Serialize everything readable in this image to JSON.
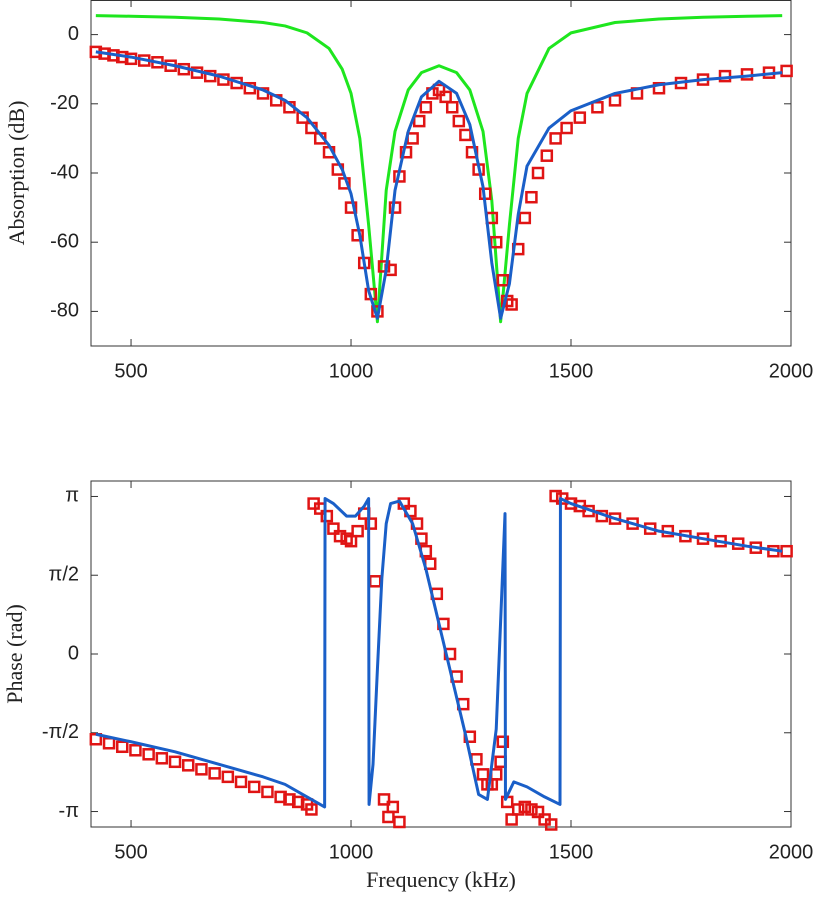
{
  "chart_data": [
    {
      "type": "line",
      "ylabel": "Absorption (dB)",
      "xlim": [
        409,
        2000
      ],
      "xticks": [
        500,
        1000,
        1500,
        2000
      ],
      "ylim": [
        -90,
        10
      ],
      "yticks": [
        -80,
        -60,
        -40,
        -20,
        0
      ],
      "grid": false,
      "series": [
        {
          "color": "#1ee61e",
          "mode": "lines",
          "x": [
            420,
            500,
            600,
            700,
            800,
            850,
            900,
            950,
            980,
            1000,
            1020,
            1040,
            1060,
            1080,
            1100,
            1130,
            1160,
            1200,
            1240,
            1270,
            1300,
            1320,
            1340,
            1360,
            1380,
            1400,
            1450,
            1500,
            1600,
            1700,
            1800,
            1900,
            1980
          ],
          "values": [
            5.5,
            5.3,
            5.0,
            4.5,
            3.5,
            2.5,
            0.5,
            -4,
            -10,
            -17,
            -30,
            -55,
            -83,
            -45,
            -28,
            -16,
            -11,
            -9,
            -11,
            -16,
            -28,
            -48,
            -83,
            -55,
            -30,
            -17,
            -4,
            0.5,
            3.5,
            4.5,
            5,
            5.3,
            5.5
          ]
        },
        {
          "color": "#e01414",
          "mode": "markers",
          "x": [
            420,
            440,
            460,
            480,
            500,
            530,
            560,
            590,
            620,
            650,
            680,
            710,
            740,
            770,
            800,
            830,
            860,
            890,
            910,
            930,
            950,
            970,
            985,
            1000,
            1015,
            1030,
            1045,
            1060,
            1075,
            1090,
            1100,
            1110,
            1125,
            1140,
            1155,
            1170,
            1185,
            1200,
            1215,
            1230,
            1245,
            1260,
            1275,
            1290,
            1305,
            1320,
            1330,
            1345,
            1355,
            1365,
            1380,
            1395,
            1410,
            1425,
            1445,
            1465,
            1490,
            1520,
            1560,
            1600,
            1650,
            1700,
            1750,
            1800,
            1850,
            1900,
            1950,
            1990
          ],
          "values": [
            -5,
            -5.5,
            -6,
            -6.5,
            -7,
            -7.5,
            -8,
            -9,
            -10,
            -11,
            -12,
            -13,
            -14,
            -15.5,
            -17,
            -19,
            -21,
            -24,
            -27,
            -30,
            -34,
            -39,
            -43,
            -50,
            -58,
            -66,
            -75,
            -80,
            -67,
            -68,
            -50,
            -41,
            -34,
            -30,
            -25,
            -21,
            -17,
            -16,
            -18,
            -21,
            -25,
            -29,
            -34,
            -39,
            -46,
            -53,
            -60,
            -71,
            -77,
            -78,
            -62,
            -53,
            -47,
            -40,
            -35,
            -30,
            -27,
            -24,
            -21,
            -19,
            -17,
            -15.5,
            -14,
            -13,
            -12,
            -11.5,
            -11,
            -10.5
          ]
        },
        {
          "color": "#1a5fc8",
          "mode": "lines",
          "x": [
            420,
            500,
            600,
            700,
            800,
            850,
            900,
            950,
            980,
            1000,
            1020,
            1040,
            1060,
            1080,
            1100,
            1130,
            1160,
            1200,
            1240,
            1270,
            1300,
            1320,
            1340,
            1360,
            1380,
            1400,
            1450,
            1500,
            1600,
            1700,
            1800,
            1900,
            1980
          ],
          "values": [
            -5,
            -6.5,
            -9,
            -12,
            -16,
            -19,
            -24,
            -32,
            -39,
            -46,
            -58,
            -74,
            -82,
            -68,
            -45,
            -28,
            -18,
            -13.5,
            -17,
            -26,
            -44,
            -66,
            -82,
            -72,
            -52,
            -38,
            -27,
            -22,
            -17,
            -14.5,
            -13,
            -12,
            -11
          ]
        }
      ]
    },
    {
      "type": "line",
      "xlabel": "Frequency (kHz)",
      "ylabel": "Phase (rad)",
      "xlim": [
        409,
        2000
      ],
      "xticks": [
        500,
        1000,
        1500,
        2000
      ],
      "ylim": [
        -3.45,
        3.45
      ],
      "yticks": [
        {
          "value": -3.14159,
          "label": "-π"
        },
        {
          "value": -1.5708,
          "label": "-π/2"
        },
        0,
        {
          "value": 1.5708,
          "label": "π/2"
        },
        {
          "value": 3.14159,
          "label": "π"
        }
      ],
      "grid": false,
      "series": [
        {
          "color": "#e01414",
          "mode": "markers",
          "x": [
            420,
            450,
            480,
            510,
            540,
            570,
            600,
            630,
            660,
            690,
            720,
            750,
            780,
            810,
            840,
            860,
            880,
            900,
            910,
            915,
            930,
            945,
            960,
            975,
            990,
            1000,
            1015,
            1030,
            1045,
            1055,
            1075,
            1085,
            1095,
            1110,
            1120,
            1135,
            1150,
            1160,
            1170,
            1180,
            1195,
            1210,
            1225,
            1240,
            1255,
            1270,
            1285,
            1300,
            1310,
            1320,
            1330,
            1340,
            1345,
            1355,
            1365,
            1380,
            1395,
            1410,
            1425,
            1440,
            1455,
            1465,
            1480,
            1500,
            1520,
            1540,
            1570,
            1600,
            1640,
            1680,
            1720,
            1760,
            1800,
            1840,
            1880,
            1920,
            1960,
            1990
          ],
          "values": [
            -1.7,
            -1.78,
            -1.85,
            -1.92,
            -2.0,
            -2.08,
            -2.15,
            -2.22,
            -2.3,
            -2.38,
            -2.45,
            -2.55,
            -2.65,
            -2.75,
            -2.85,
            -2.9,
            -2.95,
            -3.0,
            -3.1,
            3.0,
            2.9,
            2.75,
            2.5,
            2.35,
            2.3,
            2.25,
            2.45,
            2.8,
            2.6,
            1.45,
            -2.9,
            -3.25,
            -3.05,
            -3.35,
            3.0,
            2.85,
            2.6,
            2.3,
            2.05,
            1.8,
            1.2,
            0.6,
            0,
            -0.45,
            -1.0,
            -1.65,
            -2.1,
            -2.4,
            -2.6,
            -2.6,
            -2.4,
            -2.15,
            -1.75,
            -2.95,
            -3.3,
            -3.1,
            -3.05,
            -3.1,
            -3.15,
            -3.3,
            -3.4,
            3.15,
            3.1,
            3.0,
            2.95,
            2.85,
            2.75,
            2.7,
            2.6,
            2.5,
            2.45,
            2.35,
            2.3,
            2.25,
            2.2,
            2.12,
            2.05,
            2.05
          ]
        },
        {
          "color": "#1a5fc8",
          "mode": "lines",
          "x": [
            420,
            500,
            600,
            700,
            800,
            850,
            900,
            940,
            941,
            960,
            990,
            1010,
            1030,
            1040,
            1041,
            1050,
            1060,
            1070,
            1080,
            1090,
            1110,
            1140,
            1170,
            1200,
            1230,
            1260,
            1290,
            1310,
            1330,
            1350,
            1351,
            1370,
            1400,
            1440,
            1475,
            1476,
            1500,
            1600,
            1700,
            1800,
            1900,
            1980
          ],
          "values": [
            -1.6,
            -1.75,
            -1.95,
            -2.2,
            -2.45,
            -2.6,
            -2.85,
            -3.05,
            3.1,
            3.0,
            2.75,
            2.75,
            2.95,
            3.1,
            -3.0,
            -2.2,
            -0.3,
            1.5,
            2.6,
            3.0,
            3.05,
            2.6,
            1.7,
            0.6,
            -0.5,
            -1.6,
            -2.8,
            -2.9,
            -1.5,
            2.8,
            -2.9,
            -2.55,
            -2.65,
            -2.85,
            -3.0,
            3.1,
            3.0,
            2.7,
            2.45,
            2.3,
            2.15,
            2.05
          ]
        }
      ]
    }
  ]
}
